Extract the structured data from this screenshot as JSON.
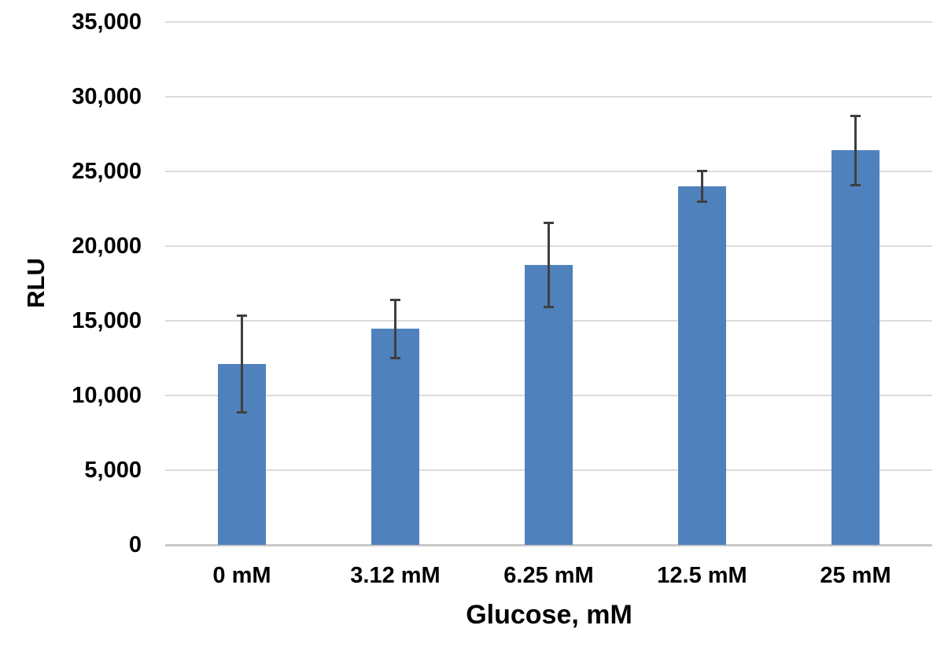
{
  "chart_data": {
    "type": "bar",
    "title": "",
    "xlabel": "Glucose, mM",
    "ylabel": "RLU",
    "categories": [
      "0 mM",
      "3.12 mM",
      "6.25 mM",
      "12.5 mM",
      "25 mM"
    ],
    "values": [
      12100,
      14450,
      18750,
      24000,
      26400
    ],
    "error_bars": [
      3250,
      1950,
      2850,
      1050,
      2350
    ],
    "ylim": [
      0,
      35000
    ],
    "ytick_step": 5000,
    "yticks": [
      0,
      5000,
      10000,
      15000,
      20000,
      25000,
      30000,
      35000
    ],
    "ytick_labels": [
      "0",
      "5,000",
      "10,000",
      "15,000",
      "20,000",
      "25,000",
      "30,000",
      "35,000"
    ],
    "grid": true,
    "legend": "none",
    "colors": {
      "bar": "#4F81BD",
      "error_bar": "#3F3F3F",
      "gridline": "#DBDBDB",
      "axis_line": "#C8C8C8",
      "text": "#000000",
      "background": "#FFFFFF"
    }
  }
}
